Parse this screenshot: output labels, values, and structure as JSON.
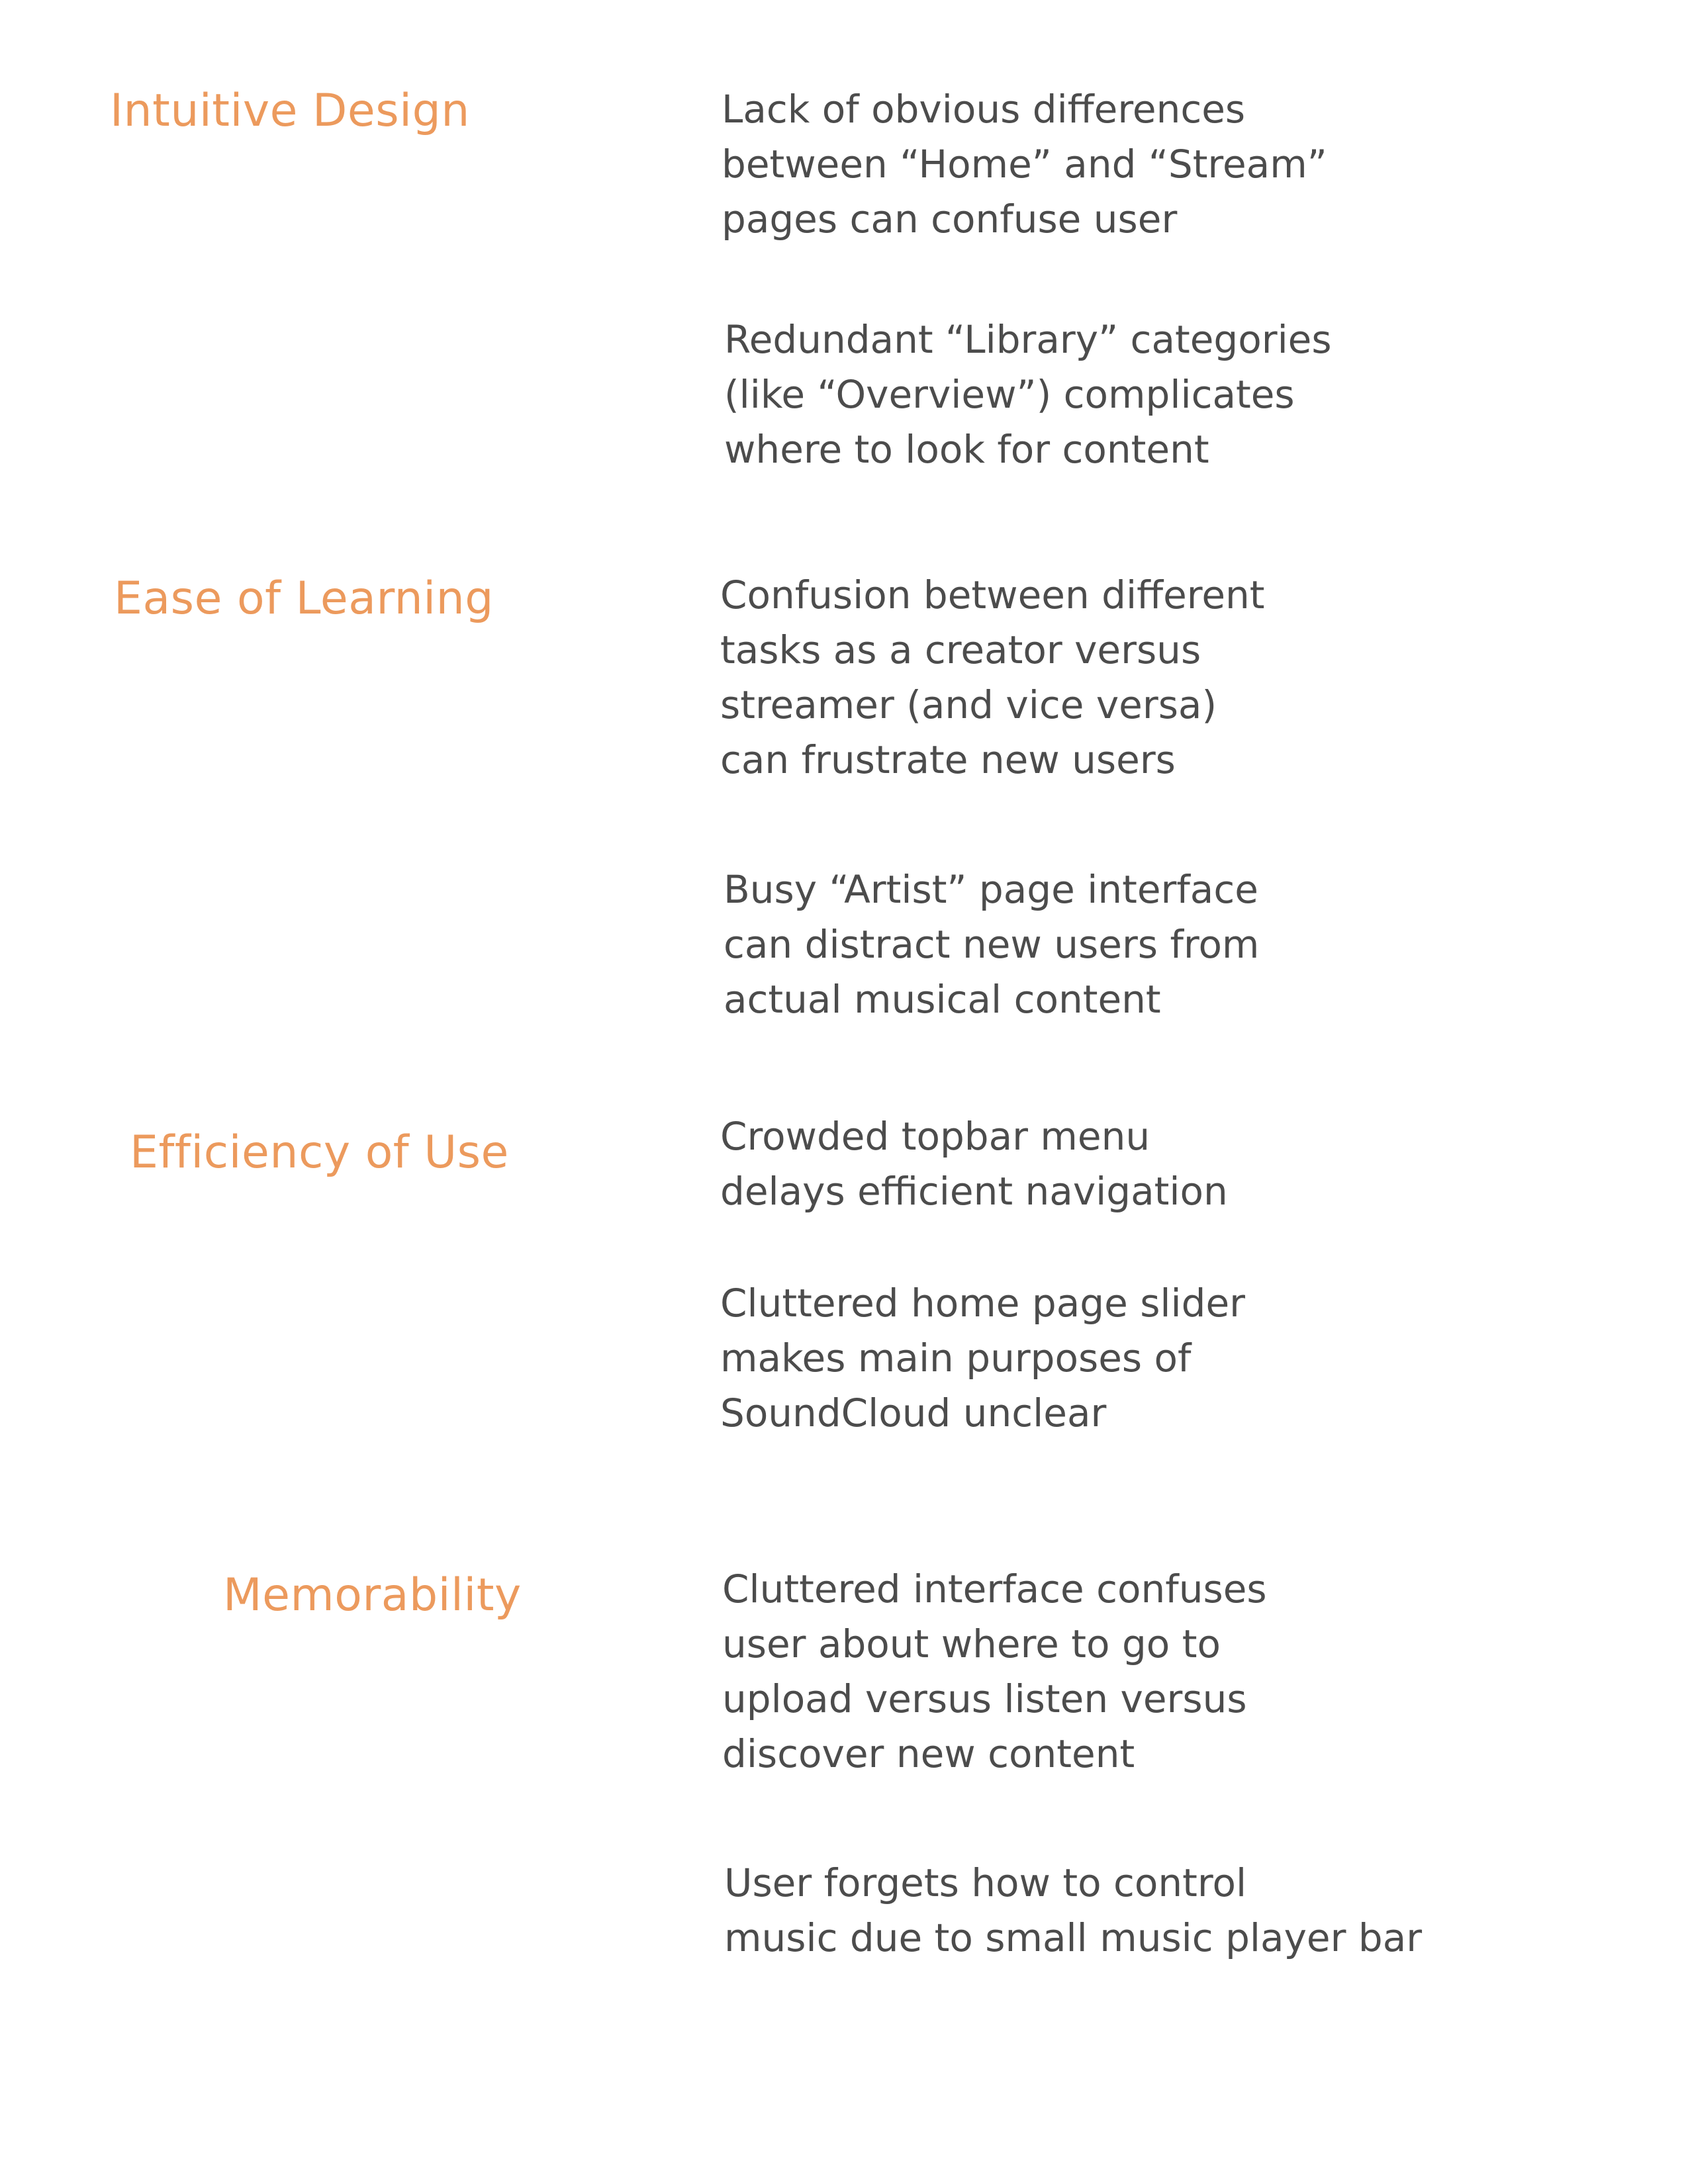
{
  "sections": [
    {
      "heading": "Intuitive Design",
      "notes": [
        [
          "Lack of obvious differences",
          "between “Home” and “Stream”",
          "pages can confuse user"
        ],
        [
          "Redundant “Library” categories",
          "(like “Overview”) complicates",
          "where to look for content"
        ]
      ]
    },
    {
      "heading": "Ease of Learning",
      "notes": [
        [
          "Confusion between different",
          "tasks as a creator versus",
          "streamer (and vice versa)",
          "can frustrate new users"
        ],
        [
          "Busy “Artist” page interface",
          "can distract new users from",
          "actual musical content"
        ]
      ]
    },
    {
      "heading": "Efficiency of Use",
      "notes": [
        [
          "Crowded topbar menu",
          "delays efficient navigation"
        ],
        [
          "Cluttered home page slider",
          "makes main purposes of",
          "SoundCloud unclear"
        ]
      ]
    },
    {
      "heading": "Memorability",
      "notes": [
        [
          "Cluttered interface confuses",
          "user about where to go to",
          "upload versus listen versus",
          "discover new content"
        ],
        [
          "User forgets how to control",
          "music due to small music player bar"
        ]
      ]
    }
  ]
}
